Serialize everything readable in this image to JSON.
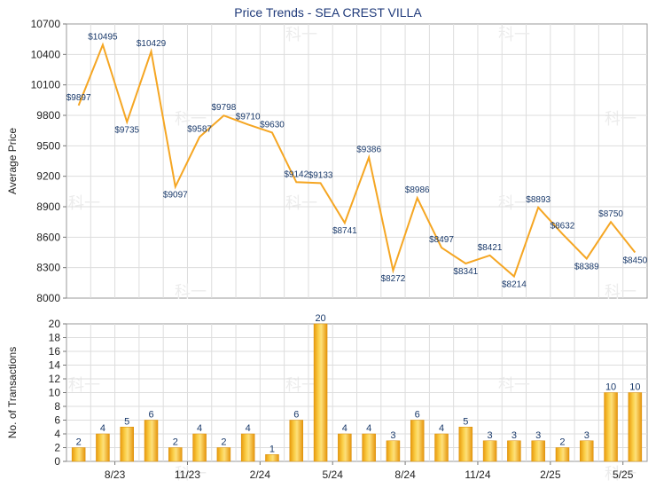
{
  "chart_data": [
    {
      "type": "line",
      "title": "Price Trends - SEA CREST VILLA",
      "ylabel": "Average Price",
      "ylim": [
        8000,
        10700
      ],
      "yticks": [
        8000,
        8300,
        8600,
        8900,
        9200,
        9500,
        9800,
        10100,
        10400,
        10700
      ],
      "grid": true,
      "color": "#f5a623",
      "points": [
        {
          "label": "$9897",
          "value": 9897
        },
        {
          "label": "$10495",
          "value": 10495
        },
        {
          "label": "$9735",
          "value": 9735
        },
        {
          "label": "$10429",
          "value": 10429
        },
        {
          "label": "$9097",
          "value": 9097
        },
        {
          "label": "$9587",
          "value": 9587
        },
        {
          "label": "$9798",
          "value": 9798
        },
        {
          "label": "$9710",
          "value": 9710
        },
        {
          "label": "$9630",
          "value": 9630
        },
        {
          "label": "$9142",
          "value": 9142
        },
        {
          "label": "$9133",
          "value": 9133
        },
        {
          "label": "$8741",
          "value": 8741
        },
        {
          "label": "$9386",
          "value": 9386
        },
        {
          "label": "$8272",
          "value": 8272
        },
        {
          "label": "$8986",
          "value": 8986
        },
        {
          "label": "$8497",
          "value": 8497
        },
        {
          "label": "$8341",
          "value": 8341
        },
        {
          "label": "$8421",
          "value": 8421
        },
        {
          "label": "$8214",
          "value": 8214
        },
        {
          "label": "$8893",
          "value": 8893
        },
        {
          "label": "$8632",
          "value": 8632
        },
        {
          "label": "$8389",
          "value": 8389
        },
        {
          "label": "$8750",
          "value": 8750
        },
        {
          "label": "$8450",
          "value": 8450
        }
      ]
    },
    {
      "type": "bar",
      "ylabel": "No. of Transactions",
      "ylim": [
        0,
        20
      ],
      "yticks": [
        0,
        2,
        4,
        6,
        8,
        10,
        12,
        14,
        16,
        18,
        20
      ],
      "grid": true,
      "color": "#f5b41e",
      "values": [
        2,
        4,
        5,
        6,
        2,
        4,
        2,
        4,
        1,
        6,
        20,
        4,
        4,
        3,
        6,
        4,
        5,
        3,
        3,
        3,
        2,
        3,
        10,
        10
      ],
      "xtick_labels": [
        "8/23",
        "11/23",
        "2/24",
        "5/24",
        "8/24",
        "11/24",
        "2/25",
        "5/25"
      ]
    }
  ],
  "watermark": "科一"
}
